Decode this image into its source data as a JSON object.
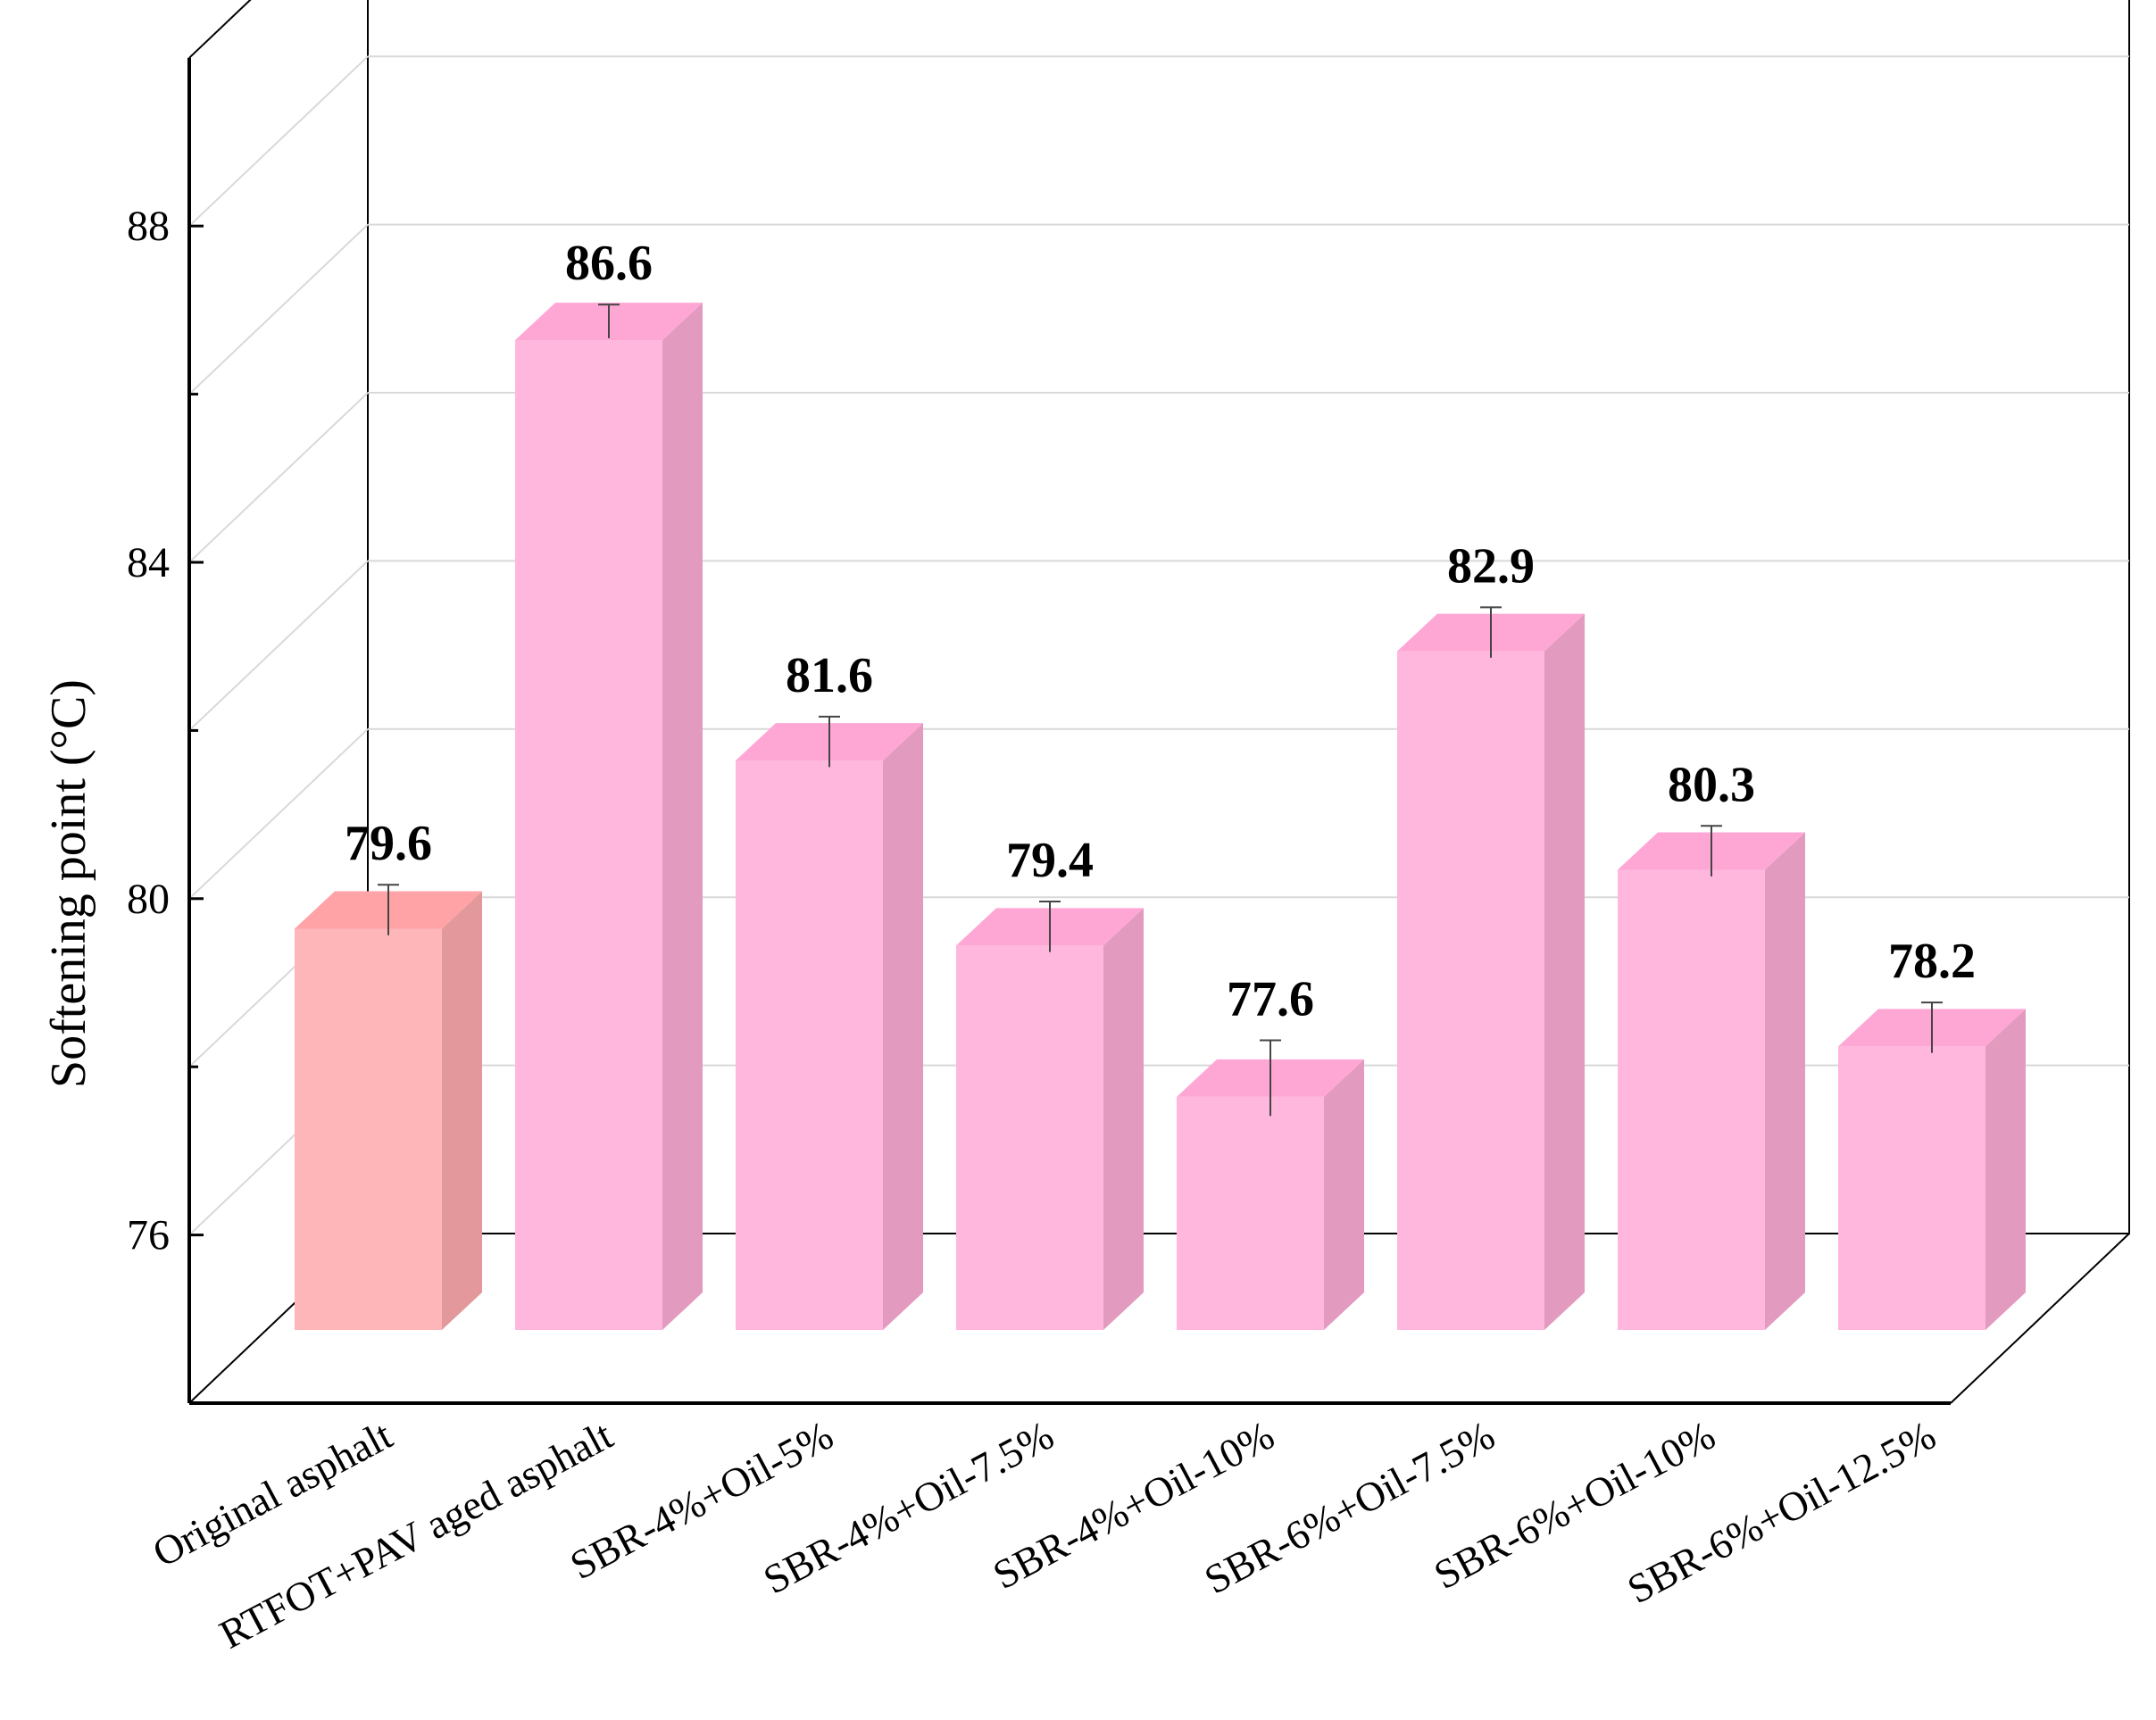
{
  "chart_data": {
    "type": "bar",
    "title": "",
    "xlabel": "",
    "ylabel": "Softening point (°C)",
    "ylim": [
      74,
      90
    ],
    "yticks": [
      76,
      80,
      84,
      88
    ],
    "grid": true,
    "legend": "none",
    "categories": [
      "Original asphalt",
      "RTFOT+PAV aged asphalt",
      "SBR-4%+Oil-5%",
      "SBR-4%+Oil-7.5%",
      "SBR-4%+Oil-10%",
      "SBR-6%+Oil-7.5%",
      "SBR-6%+Oil-10%",
      "SBR-6%+Oil-12.5%"
    ],
    "values": [
      79.6,
      86.6,
      81.6,
      79.4,
      77.6,
      82.9,
      80.3,
      78.2
    ],
    "value_labels": [
      "79.6",
      "86.6",
      "81.6",
      "79.4",
      "77.6",
      "82.9",
      "80.3",
      "78.2"
    ],
    "error": [
      0.3,
      0.2,
      0.3,
      0.3,
      0.45,
      0.3,
      0.3,
      0.3
    ],
    "colors": {
      "first_bar_front": "#FFB6B9",
      "first_bar_top": "#FFA3A6",
      "first_bar_side": "#E3999C",
      "bar_front": "#FFB7DE",
      "bar_top": "#FFA7D4",
      "bar_side": "#E39ABF",
      "grid": "#D9D9D9",
      "axis": "#000000"
    }
  }
}
